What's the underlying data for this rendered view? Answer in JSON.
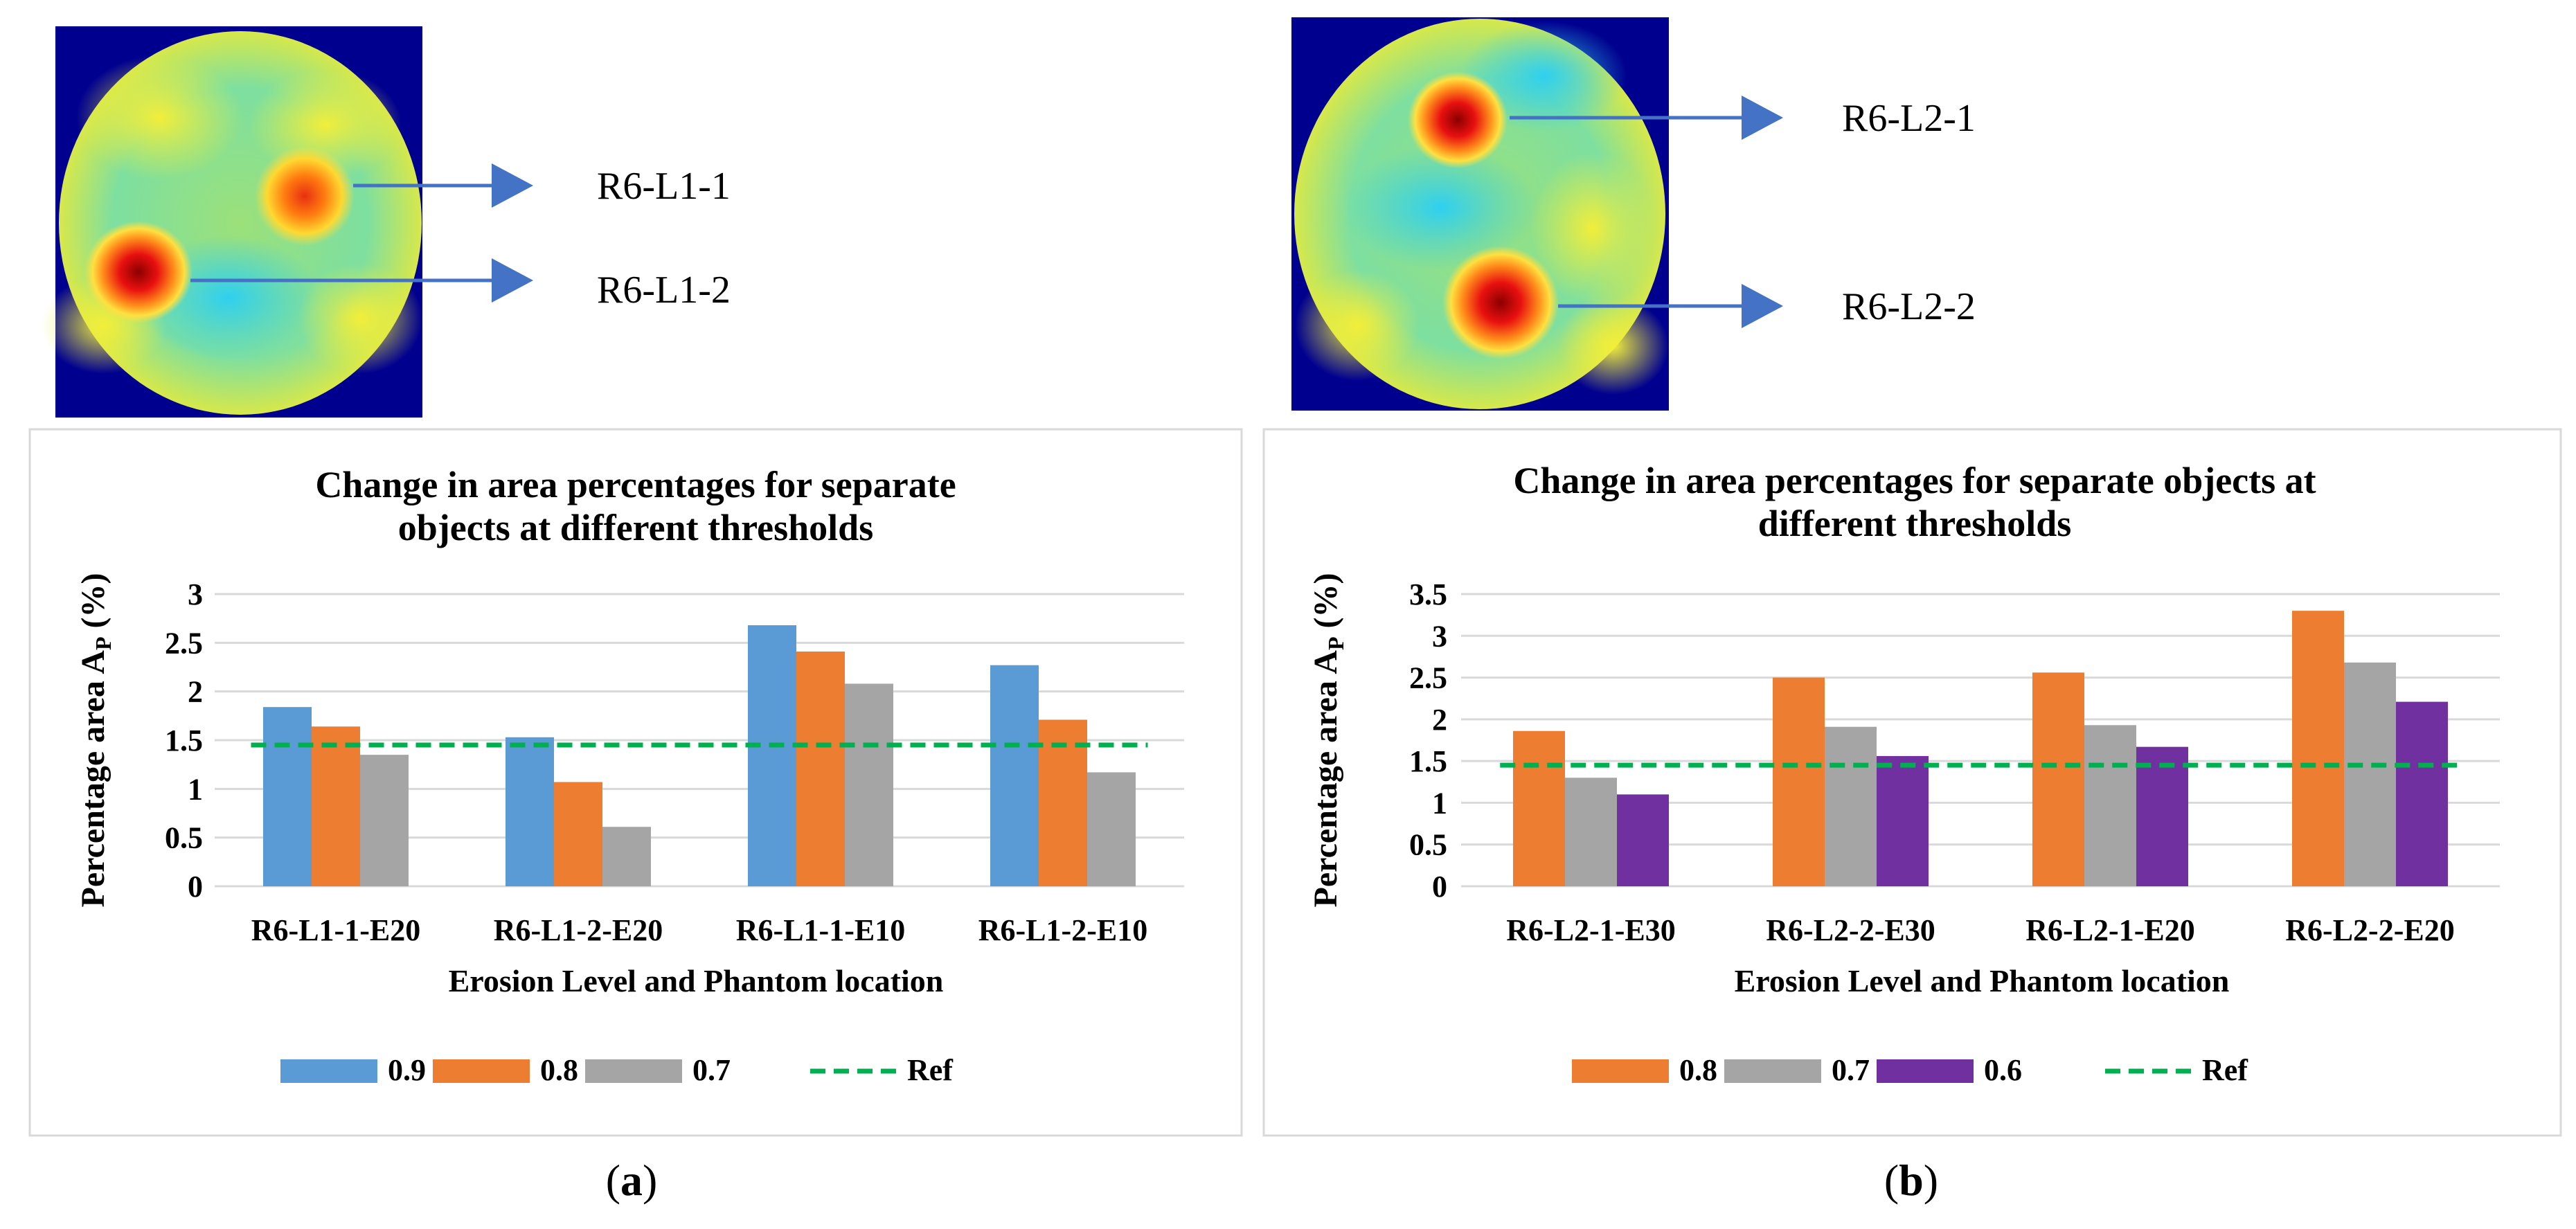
{
  "panel_a": {
    "image_labels": [
      "R6-L1-1",
      "R6-L1-2"
    ],
    "caption": "(a)",
    "caption_letter": "a"
  },
  "panel_b": {
    "image_labels": [
      "R6-L2-1",
      "R6-L2-2"
    ],
    "caption": "(b)",
    "caption_letter": "b"
  },
  "colors": {
    "s09": "#5B9BD5",
    "s08": "#ED7D31",
    "s07": "#A5A5A5",
    "s06": "#7030A0",
    "ref": "#00B050",
    "image_bg": "#00008F"
  },
  "chart_data": [
    {
      "type": "bar",
      "title": [
        "Change in area percentages for separate",
        "objects at different thresholds"
      ],
      "xlabel": "Erosion Level  and Phantom location",
      "ylabel_main": "Percentage area A",
      "ylabel_sub": "P",
      "ylabel_unit": " (%)",
      "categories": [
        "R6-L1-1-E20",
        "R6-L1-2-E20",
        "R6-L1-1-E10",
        "R6-L1-2-E10"
      ],
      "yticks": [
        "0",
        "0.5",
        "1",
        "1.5",
        "2",
        "2.5",
        "3"
      ],
      "ylim": [
        0,
        3
      ],
      "series": [
        {
          "name": "0.9",
          "color": "#5B9BD5",
          "values": [
            1.84,
            1.53,
            2.68,
            2.27
          ]
        },
        {
          "name": "0.8",
          "color": "#ED7D31",
          "values": [
            1.64,
            1.07,
            2.41,
            1.71
          ]
        },
        {
          "name": "0.7",
          "color": "#A5A5A5",
          "values": [
            1.35,
            0.61,
            2.08,
            1.17
          ]
        }
      ],
      "reference": {
        "name": "Ref",
        "value": 1.45
      },
      "legend": [
        "0.9",
        "0.8",
        "0.7",
        "Ref"
      ],
      "grid": true
    },
    {
      "type": "bar",
      "title": [
        "Change in area percentages  for separate objects at",
        "different thresholds"
      ],
      "xlabel": "Erosion Level and Phantom location",
      "ylabel_main": "Percentage area A",
      "ylabel_sub": "P",
      "ylabel_unit": " (%)",
      "categories": [
        "R6-L2-1-E30",
        "R6-L2-2-E30",
        "R6-L2-1-E20",
        "R6-L2-2-E20"
      ],
      "yticks": [
        "0",
        "0.5",
        "1",
        "1.5",
        "2",
        "2.5",
        "3",
        "3.5"
      ],
      "ylim": [
        0,
        3.5
      ],
      "series": [
        {
          "name": "0.8",
          "color": "#ED7D31",
          "values": [
            1.86,
            2.5,
            2.56,
            3.3
          ]
        },
        {
          "name": "0.7",
          "color": "#A5A5A5",
          "values": [
            1.3,
            1.91,
            1.93,
            2.68
          ]
        },
        {
          "name": "0.6",
          "color": "#7030A0",
          "values": [
            1.1,
            1.56,
            1.67,
            2.21
          ]
        }
      ],
      "reference": {
        "name": "Ref",
        "value": 1.45
      },
      "legend": [
        "0.8",
        "0.7",
        "0.6",
        "Ref"
      ],
      "grid": true
    }
  ]
}
